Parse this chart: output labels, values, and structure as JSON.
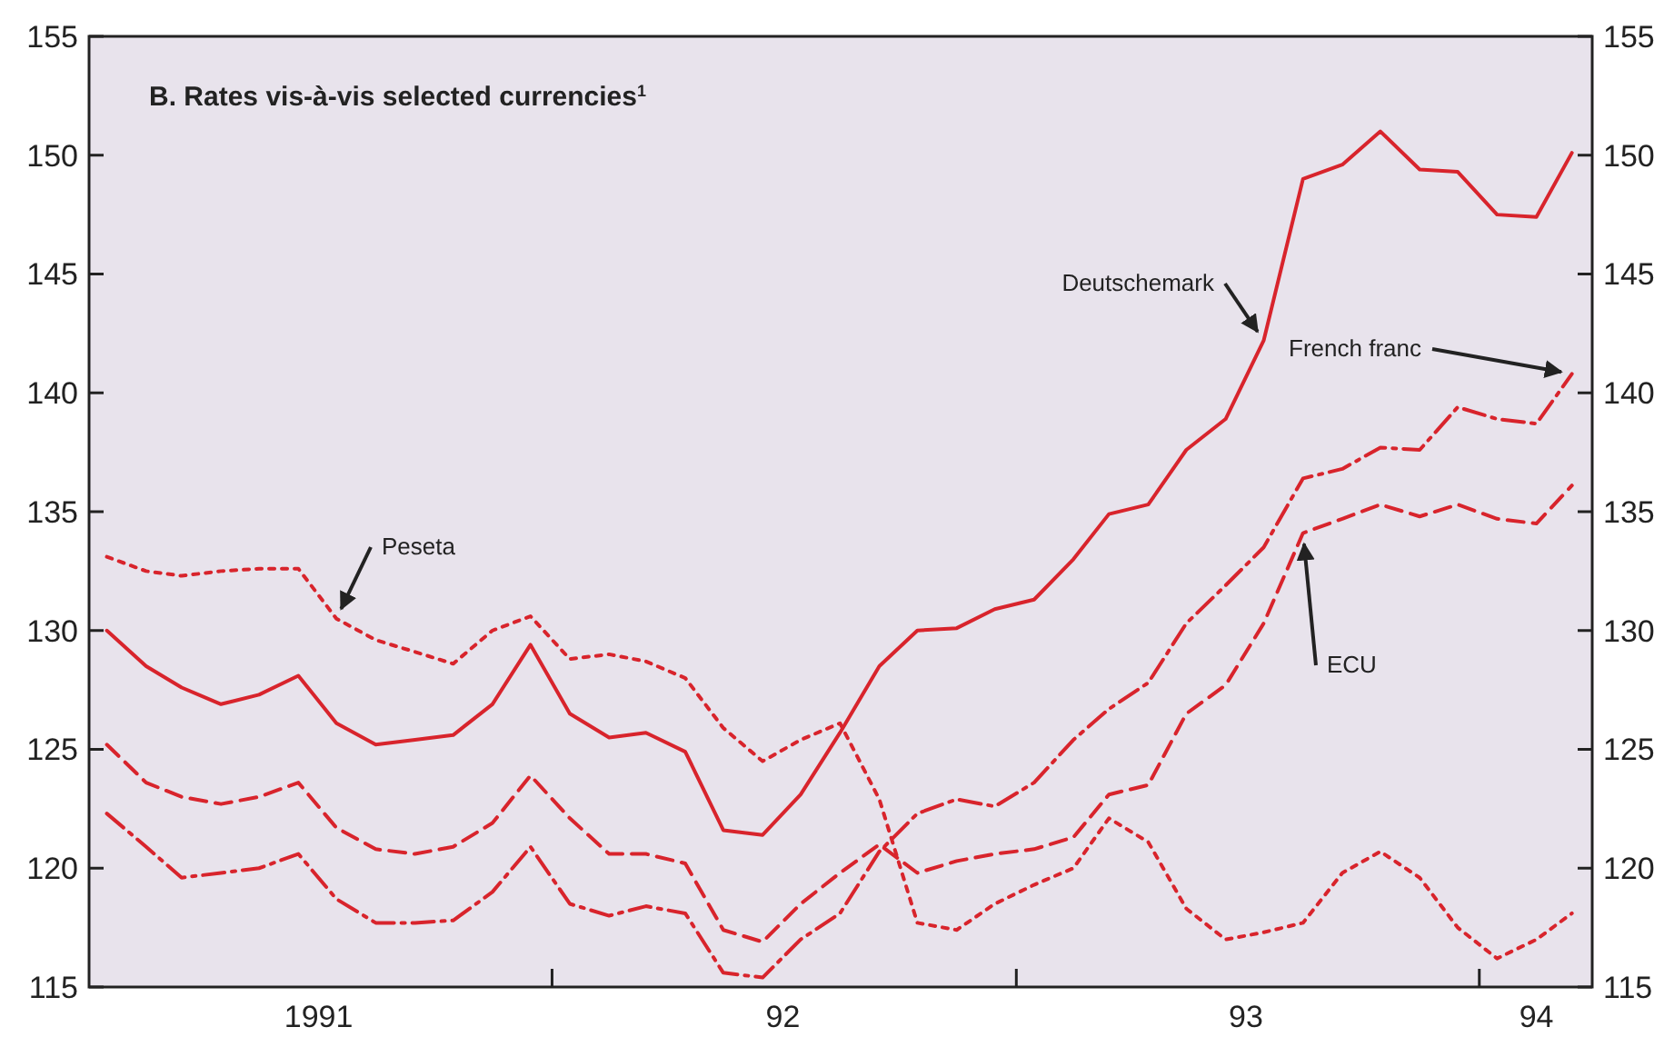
{
  "chart_data": {
    "type": "line",
    "title": "B.  Rates vis-à-vis selected currencies$^{1}$",
    "x": [
      "1991-01-15",
      "1991-02-15",
      "1991-03-15",
      "1991-04-15",
      "1991-05-15",
      "1991-06-15",
      "1991-07-15",
      "1991-08-15",
      "1991-09-15",
      "1991-10-15",
      "1991-11-15",
      "1991-12-15",
      "1992-01-15",
      "1992-02-15",
      "1992-03-15",
      "1992-04-15",
      "1992-05-15",
      "1992-06-15",
      "1992-07-15",
      "1992-08-15",
      "1992-09-15",
      "1992-10-15",
      "1992-11-15",
      "1992-12-15",
      "1993-01-15",
      "1993-02-15",
      "1993-03-15",
      "1993-04-15",
      "1993-05-15",
      "1993-06-15",
      "1993-07-15",
      "1993-08-15",
      "1993-09-15",
      "1993-10-15",
      "1993-11-15",
      "1993-12-15",
      "1994-01-15",
      "1994-02-15",
      "1994-03-15"
    ],
    "series": [
      {
        "name": "Deutschemark",
        "color": "#d8242c",
        "line_style": "solid",
        "values": [
          130.0,
          128.5,
          127.6,
          126.9,
          127.3,
          128.1,
          126.1,
          125.2,
          125.4,
          125.6,
          126.9,
          129.4,
          126.5,
          125.5,
          125.7,
          124.9,
          121.6,
          121.4,
          123.1,
          125.7,
          128.5,
          130.0,
          130.1,
          130.9,
          131.3,
          133.0,
          134.9,
          135.3,
          137.6,
          138.9,
          142.2,
          149.0,
          149.6,
          151.0,
          149.4,
          149.3,
          147.5,
          147.4,
          150.1
        ]
      },
      {
        "name": "French franc",
        "color": "#d8242c",
        "line_style": "dashdot",
        "values": [
          122.3,
          120.9,
          119.6,
          119.8,
          120.0,
          120.6,
          118.7,
          117.7,
          117.7,
          117.8,
          119.0,
          120.9,
          118.5,
          118.0,
          118.4,
          118.1,
          115.6,
          115.4,
          117.0,
          118.1,
          120.7,
          122.3,
          122.9,
          122.6,
          123.6,
          125.4,
          126.7,
          127.8,
          130.3,
          131.9,
          133.5,
          136.4,
          136.8,
          137.7,
          137.6,
          139.4,
          138.9,
          138.7,
          140.8
        ]
      },
      {
        "name": "ECU",
        "color": "#d8242c",
        "line_style": "dashed",
        "values": [
          125.2,
          123.6,
          123.0,
          122.7,
          123.0,
          123.6,
          121.7,
          120.8,
          120.6,
          120.9,
          121.9,
          123.9,
          122.1,
          120.6,
          120.6,
          120.2,
          117.4,
          116.9,
          118.5,
          119.8,
          121.0,
          119.8,
          120.3,
          120.6,
          120.8,
          121.3,
          123.1,
          123.5,
          126.5,
          127.7,
          130.3,
          134.1,
          134.7,
          135.3,
          134.8,
          135.3,
          134.7,
          134.5,
          136.1
        ]
      },
      {
        "name": "Peseta",
        "color": "#d8242c",
        "line_style": "dotted",
        "values": [
          133.1,
          132.5,
          132.3,
          132.5,
          132.6,
          132.6,
          130.5,
          129.6,
          129.1,
          128.6,
          130.0,
          130.6,
          128.8,
          129.0,
          128.7,
          128.0,
          125.9,
          124.5,
          125.4,
          126.1,
          122.9,
          117.7,
          117.4,
          118.5,
          119.3,
          120.0,
          122.1,
          121.1,
          118.3,
          117.0,
          117.3,
          117.7,
          119.8,
          120.7,
          119.6,
          117.5,
          116.2,
          117.0,
          118.1
        ]
      }
    ],
    "xlim": [
      "1991-01-01",
      "1994-03-31"
    ],
    "xticks": [
      {
        "value": "1991-07-01",
        "label": "1991"
      },
      {
        "value": "1992-07-01",
        "label": "92"
      },
      {
        "value": "1993-07-01",
        "label": "93"
      },
      {
        "value": "1994-02-15",
        "label": "94"
      },
      {
        "value": "1992-01-01",
        "label": null
      },
      {
        "value": "1993-01-01",
        "label": null
      },
      {
        "value": "1994-01-01",
        "label": null
      }
    ],
    "ylim": [
      115,
      155
    ],
    "yticks": [
      115,
      120,
      125,
      130,
      135,
      140,
      145,
      150,
      155
    ],
    "y2lim": [
      115,
      155
    ],
    "y2ticks": [
      115,
      120,
      125,
      130,
      135,
      140,
      145,
      150,
      155
    ],
    "grid": false
  }
}
